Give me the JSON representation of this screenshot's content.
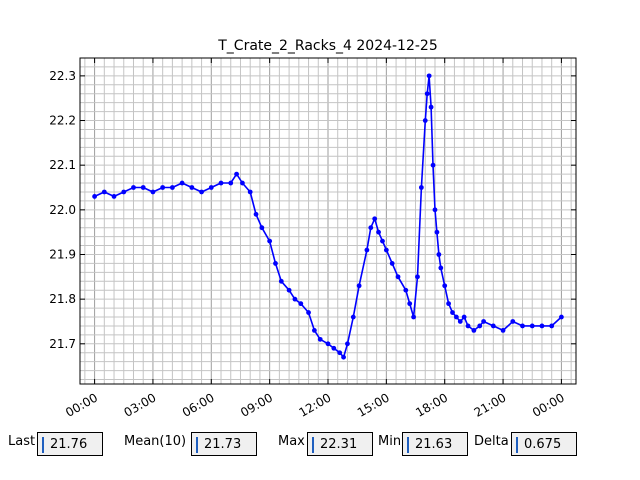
{
  "chart_data": {
    "type": "line",
    "title": "T_Crate_2_Racks_4 2024-12-25",
    "xlabel": "",
    "ylabel": "",
    "x_unit": "hours",
    "xlim": [
      -0.75,
      24.75
    ],
    "ylim": [
      21.61,
      22.34
    ],
    "xticks": [
      0,
      3,
      6,
      9,
      12,
      15,
      18,
      21,
      24
    ],
    "xtick_labels": [
      "00:00",
      "03:00",
      "06:00",
      "09:00",
      "12:00",
      "15:00",
      "18:00",
      "21:00",
      "00:00"
    ],
    "yticks": [
      21.7,
      21.8,
      21.9,
      22.0,
      22.1,
      22.2,
      22.3
    ],
    "ytick_labels": [
      "21.7",
      "21.8",
      "21.9",
      "22.0",
      "22.1",
      "22.2",
      "22.3"
    ],
    "grid": true,
    "color": "#0000ff",
    "series": [
      {
        "x": [
          0.0,
          0.5,
          1.0,
          1.5,
          2.0,
          2.5,
          3.0,
          3.5,
          4.0,
          4.5,
          5.0,
          5.5,
          6.0,
          6.5,
          7.0,
          7.3,
          7.6,
          8.0,
          8.3,
          8.6,
          9.0,
          9.3,
          9.6,
          10.0,
          10.3,
          10.6,
          11.0,
          11.3,
          11.6,
          12.0,
          12.3,
          12.6,
          12.8,
          13.0,
          13.3,
          13.6,
          14.0,
          14.2,
          14.4,
          14.6,
          14.8,
          15.0,
          15.3,
          15.6,
          16.0,
          16.2,
          16.4,
          16.6,
          16.8,
          17.0,
          17.1,
          17.2,
          17.3,
          17.4,
          17.5,
          17.6,
          17.7,
          17.8,
          18.0,
          18.2,
          18.4,
          18.6,
          18.8,
          19.0,
          19.2,
          19.5,
          19.8,
          20.0,
          20.5,
          21.0,
          21.5,
          22.0,
          22.5,
          23.0,
          23.5,
          24.0
        ],
        "y": [
          22.03,
          22.04,
          22.03,
          22.04,
          22.05,
          22.05,
          22.04,
          22.05,
          22.05,
          22.06,
          22.05,
          22.04,
          22.05,
          22.06,
          22.06,
          22.08,
          22.06,
          22.04,
          21.99,
          21.96,
          21.93,
          21.88,
          21.84,
          21.82,
          21.8,
          21.79,
          21.77,
          21.73,
          21.71,
          21.7,
          21.69,
          21.68,
          21.67,
          21.7,
          21.76,
          21.83,
          21.91,
          21.96,
          21.98,
          21.95,
          21.93,
          21.91,
          21.88,
          21.85,
          21.82,
          21.79,
          21.76,
          21.85,
          22.05,
          22.2,
          22.26,
          22.3,
          22.23,
          22.1,
          22.0,
          21.95,
          21.9,
          21.87,
          21.83,
          21.79,
          21.77,
          21.76,
          21.75,
          21.76,
          21.74,
          21.73,
          21.74,
          21.75,
          21.74,
          21.73,
          21.75,
          21.74,
          21.74,
          21.74,
          21.74,
          21.76
        ]
      }
    ]
  },
  "stats": {
    "last_label": "Last",
    "last_value": "21.76",
    "mean_label": "Mean(10)",
    "mean_value": "21.73",
    "max_label": "Max",
    "max_value": "22.31",
    "min_label": "Min",
    "min_value": "21.63",
    "delta_label": "Delta",
    "delta_value": "0.675"
  }
}
